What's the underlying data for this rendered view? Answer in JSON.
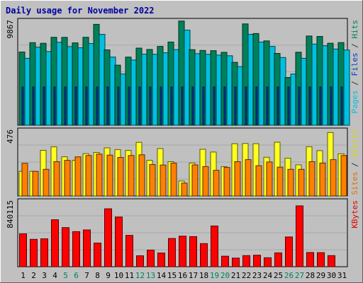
{
  "chart_data": {
    "type": "bar",
    "title": "Daily usage for November 2022",
    "categories": [
      "1",
      "2",
      "3",
      "4",
      "5",
      "6",
      "7",
      "8",
      "9",
      "10",
      "11",
      "12",
      "13",
      "14",
      "15",
      "16",
      "17",
      "18",
      "19",
      "20",
      "21",
      "22",
      "23",
      "24",
      "25",
      "26",
      "27",
      "28",
      "29",
      "30",
      "31"
    ],
    "weekend_days": [
      "5",
      "6",
      "12",
      "13",
      "19",
      "20",
      "26",
      "27"
    ],
    "panels": [
      {
        "id": "top",
        "ymax_label": "9867",
        "right_label_parts": [
          {
            "text": "Pages",
            "color": "#00c0e0"
          },
          {
            "text": " / ",
            "color": "#303030"
          },
          {
            "text": "Files",
            "color": "#0040c0"
          },
          {
            "text": " / ",
            "color": "#303030"
          },
          {
            "text": "Hits",
            "color": "#00805a"
          }
        ],
        "ymax": 9867,
        "series": [
          {
            "name": "Hits",
            "color": "#00805a",
            "values": [
              6900,
              7780,
              7720,
              8290,
              8280,
              7760,
              8290,
              9510,
              7100,
              5660,
              6420,
              7270,
              7140,
              7430,
              7840,
              9820,
              7120,
              7050,
              7030,
              6870,
              5930,
              9550,
              8640,
              7950,
              6770,
              4500,
              6880,
              8410,
              8370,
              7730,
              7790
            ]
          },
          {
            "name": "Files",
            "color": "#0040c0",
            "values": [
              3600,
              3600,
              3600,
              3600,
              3600,
              3600,
              3600,
              3600,
              3600,
              3600,
              3600,
              3600,
              3600,
              3600,
              3600,
              3600,
              3600,
              3600,
              3600,
              3600,
              3600,
              3600,
              3600,
              3600,
              3600,
              3600,
              3600,
              3600,
              3600,
              3600,
              3600
            ]
          },
          {
            "name": "Pages",
            "color": "#00c0e0",
            "values": [
              6310,
              7370,
              6950,
              7820,
              7410,
              7300,
              7700,
              8570,
              6420,
              4830,
              6150,
              6700,
              6690,
              6830,
              7130,
              8960,
              6750,
              6690,
              6610,
              6550,
              5530,
              8570,
              7840,
              7430,
              6380,
              4830,
              6310,
              7650,
              7490,
              7180,
              7090
            ]
          }
        ]
      },
      {
        "id": "middle",
        "ymax_label": "476",
        "right_label_parts": [
          {
            "text": "Sites",
            "color": "#e07000"
          },
          {
            "text": " / ",
            "color": "#303030"
          },
          {
            "text": "Visits",
            "color": "#d8d800"
          }
        ],
        "ymax": 476,
        "series": [
          {
            "name": "Visits",
            "color": "#ffff20",
            "values": [
              178,
              178,
              330,
              355,
              283,
              258,
              306,
              315,
              348,
              336,
              330,
              388,
              258,
              343,
              248,
              108,
              238,
              338,
              318,
              212,
              378,
              380,
              378,
              280,
              389,
              273,
              225,
              356,
              328,
              459,
              305
            ]
          },
          {
            "name": "Sites",
            "color": "#ff8000",
            "values": [
              237,
              178,
              193,
              248,
              258,
              283,
              293,
              303,
              296,
              279,
              293,
              298,
              228,
              224,
              238,
              93,
              225,
              213,
              186,
              207,
              248,
              263,
              219,
              246,
              209,
              193,
              193,
              248,
              238,
              263,
              293
            ]
          }
        ]
      },
      {
        "id": "bottom",
        "ymax_label": "840115",
        "right_label_parts": [
          {
            "text": "KBytes",
            "color": "#e00000"
          }
        ],
        "ymax": 840115,
        "series": [
          {
            "name": "KBytes",
            "color": "#ff0000",
            "values": [
              420000,
              350000,
              357000,
              600000,
              500000,
              448000,
              470000,
              303000,
              740000,
              635000,
              400000,
              140000,
              212000,
              175000,
              360000,
              390000,
              385000,
              295000,
              520000,
              135000,
              110000,
              142000,
              147000,
              115000,
              177000,
              380000,
              777000,
              182000,
              180000,
              142000,
              0
            ]
          }
        ]
      }
    ],
    "grid": true,
    "legend": "right-vertical"
  }
}
